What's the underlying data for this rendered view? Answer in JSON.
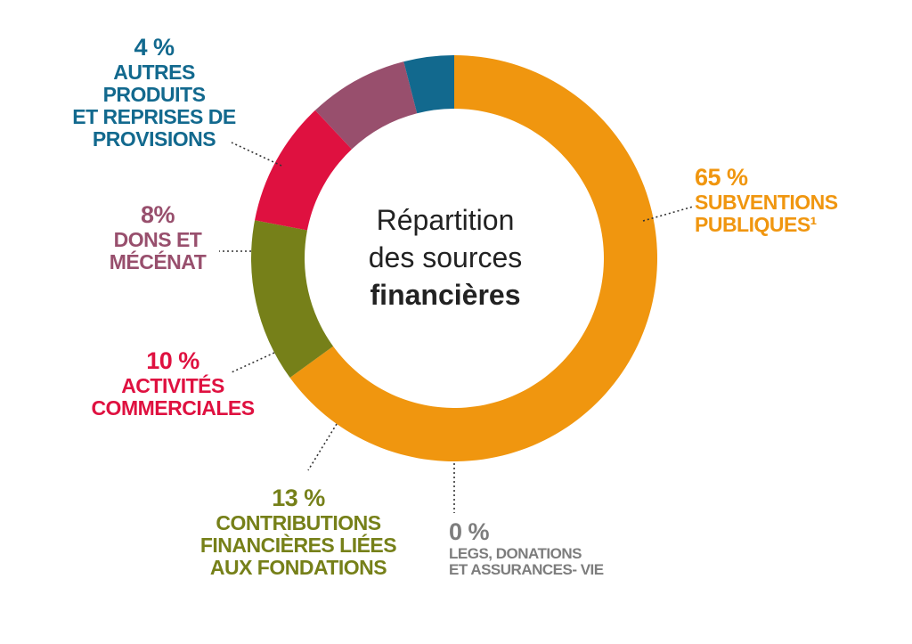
{
  "chart_data": {
    "type": "pie",
    "donut": true,
    "title_lines": [
      "Répartition",
      "des sources",
      "financières"
    ],
    "slices": [
      {
        "label": "SUBVENTIONS\nPUBLIQUES¹",
        "value": 65,
        "display": "65 %",
        "color": "#f0960f"
      },
      {
        "label": "LEGS, DONATIONS\nET ASSURANCES- VIE",
        "value": 0,
        "display": "0 %",
        "color": "#7d7d7d"
      },
      {
        "label": "CONTRIBUTIONS\nFINANCIÈRES LIÉES\nAUX FONDATIONS",
        "value": 13,
        "display": "13 %",
        "color": "#768019"
      },
      {
        "label": "ACTIVITÉS\nCOMMERCIALES",
        "value": 10,
        "display": "10 %",
        "color": "#df1140"
      },
      {
        "label": "DONS ET\nMÉCÉNAT",
        "value": 8,
        "display": "8%",
        "color": "#984f6d"
      },
      {
        "label": "AUTRES PRODUITS\nET REPRISES DE\nPROVISIONS",
        "value": 4,
        "display": "4 %",
        "color": "#12698e"
      }
    ]
  }
}
